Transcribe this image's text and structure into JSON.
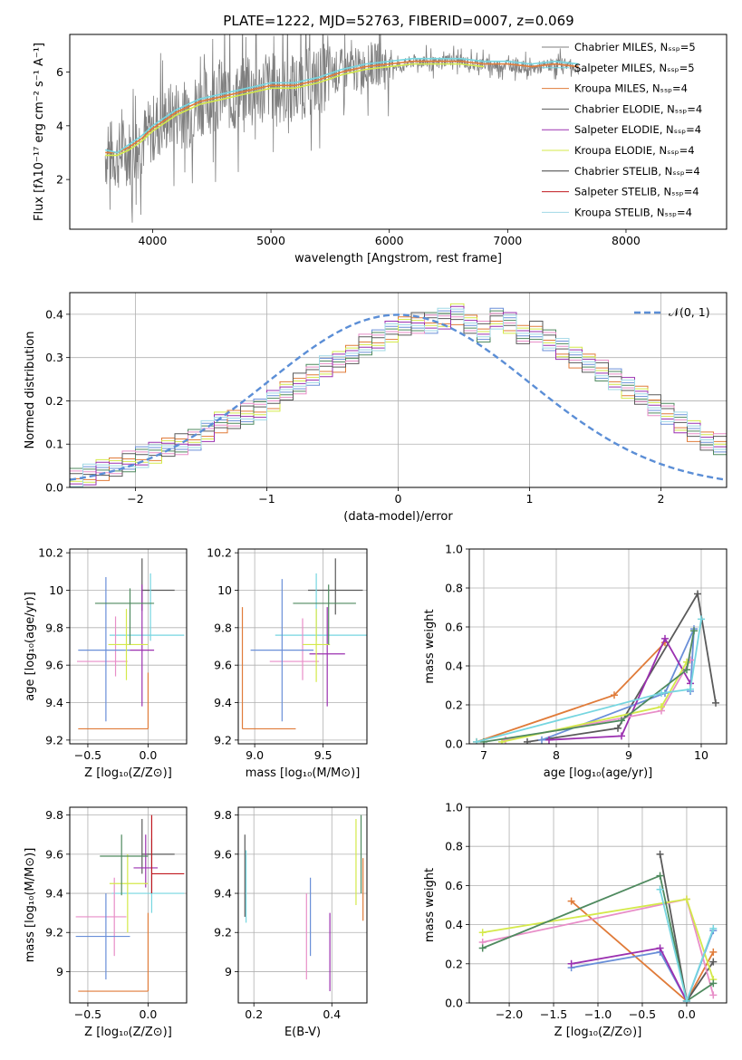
{
  "figure_title": "PLATE=1222, MJD=52763, FIBERID=0007, z=0.069",
  "colors": [
    "#7f7f7f",
    "#76d6e0",
    "#e07b39",
    "#5a5a5a",
    "#9b30b0",
    "#d4e94a",
    "#3f3f3f",
    "#c0181f",
    "#a0d8e6",
    "#6a8fd8",
    "#e88ec8",
    "#4f8a5f"
  ],
  "chart_data": [
    {
      "id": "spectrum",
      "type": "line",
      "title": "PLATE=1222, MJD=52763, FIBERID=0007, z=0.069",
      "xlabel": "wavelength [Angstrom, rest frame]",
      "ylabel": "Flux [fλ10⁻¹⁷ erg cm⁻² s⁻¹ A⁻¹]",
      "xlim": [
        3300,
        8850
      ],
      "ylim": [
        0.15,
        7.4
      ],
      "xticks": [
        4000,
        5000,
        6000,
        7000,
        8000
      ],
      "yticks": [
        2,
        4,
        6
      ],
      "grid": false,
      "legend_position": "right",
      "legend": [
        "Chabrier MILES, N_SSP=5",
        "Salpeter MILES, N_SSP=5",
        "Kroupa MILES, N_SSP=4",
        "Chabrier ELODIE, N_SSP=4",
        "Salpeter ELODIE, N_SSP=4",
        "Kroupa ELODIE, N_SSP=4",
        "Chabrier STELIB, N_SSP=4",
        "Salpeter STELIB, N_SSP=4",
        "Kroupa STELIB, N_SSP=4"
      ],
      "series": [
        {
          "name": "data",
          "x": [
            3600,
            3650,
            3700,
            3750,
            3800,
            3850,
            3900,
            3950,
            4000,
            4100,
            4200,
            4300,
            4400,
            4500,
            4600,
            4700,
            4800,
            4900,
            5000,
            5100,
            5200,
            5300,
            5400,
            5500,
            5600,
            5700,
            5800,
            5900,
            6000,
            6100,
            6200,
            6300,
            6400,
            6500,
            6600,
            6700,
            6800,
            6900,
            7000,
            7100,
            7200,
            7300,
            7400,
            7500,
            7600
          ],
          "y": [
            2.9,
            3.0,
            2.8,
            3.1,
            3.0,
            3.2,
            3.4,
            3.6,
            3.9,
            4.2,
            4.5,
            4.4,
            4.9,
            5.0,
            5.2,
            5.0,
            5.4,
            5.3,
            5.5,
            5.3,
            5.4,
            5.6,
            5.7,
            5.9,
            6.1,
            6.0,
            6.2,
            6.3,
            6.3,
            6.2,
            6.4,
            6.4,
            6.3,
            6.5,
            6.4,
            6.3,
            6.3,
            6.2,
            6.3,
            6.2,
            6.1,
            6.2,
            6.3,
            6.3,
            6.1
          ]
        },
        {
          "name": "Salpeter MILES, N_SSP=5",
          "x": [
            3600,
            3700,
            3800,
            3900,
            4000,
            4200,
            4400,
            4600,
            4800,
            5000,
            5200,
            5400,
            5600,
            5800,
            6000,
            6200,
            6400,
            6600,
            6800,
            7000,
            7200,
            7400,
            7600
          ],
          "y": [
            3.0,
            3.0,
            3.2,
            3.5,
            3.9,
            4.5,
            4.9,
            5.1,
            5.3,
            5.5,
            5.5,
            5.7,
            6.0,
            6.2,
            6.3,
            6.4,
            6.4,
            6.4,
            6.3,
            6.3,
            6.2,
            6.3,
            6.2
          ]
        },
        {
          "name": "Kroupa MILES, N_SSP=4",
          "x": [
            3600,
            3700,
            3800,
            3900,
            4000,
            4200,
            4400,
            4600,
            4800,
            5000,
            5200,
            5400,
            5600,
            5800,
            6000,
            6200,
            6400,
            6600,
            6800,
            7000,
            7200,
            7400,
            7600
          ],
          "y": [
            3.1,
            3.0,
            3.3,
            3.6,
            4.0,
            4.6,
            5.0,
            5.2,
            5.4,
            5.6,
            5.6,
            5.8,
            6.1,
            6.3,
            6.4,
            6.5,
            6.5,
            6.5,
            6.4,
            6.4,
            6.3,
            6.4,
            6.3
          ]
        },
        {
          "name": "Kroupa ELODIE, N_SSP=4",
          "x": [
            3600,
            3700,
            3800,
            3900,
            4000,
            4200,
            4400,
            4600,
            4800,
            5000,
            5200,
            5400,
            5600,
            5800,
            6000,
            6200,
            6400,
            6600,
            6800
          ],
          "y": [
            2.9,
            2.9,
            3.1,
            3.4,
            3.8,
            4.4,
            4.8,
            5.0,
            5.2,
            5.4,
            5.4,
            5.6,
            5.9,
            6.1,
            6.2,
            6.3,
            6.3,
            6.3,
            6.2
          ]
        }
      ]
    },
    {
      "id": "residuals",
      "type": "line",
      "xlabel": "(data-model)/error",
      "ylabel": "Normed distribution",
      "xlim": [
        -2.5,
        2.5
      ],
      "ylim": [
        0,
        0.45
      ],
      "xticks": [
        -2,
        -1,
        0,
        1,
        2
      ],
      "yticks": [
        0.0,
        0.1,
        0.2,
        0.3,
        0.4
      ],
      "grid": true,
      "legend_position": "top-right",
      "legend": [
        "𝒩(0, 1)"
      ],
      "bin_width": 0.1,
      "bin_start": -2.5,
      "series": [
        {
          "name": "histogram",
          "values": [
            0.02,
            0.03,
            0.04,
            0.05,
            0.06,
            0.07,
            0.08,
            0.09,
            0.1,
            0.11,
            0.13,
            0.15,
            0.16,
            0.17,
            0.18,
            0.2,
            0.22,
            0.24,
            0.26,
            0.28,
            0.29,
            0.31,
            0.33,
            0.34,
            0.36,
            0.37,
            0.38,
            0.38,
            0.39,
            0.4,
            0.38,
            0.36,
            0.39,
            0.38,
            0.35,
            0.36,
            0.34,
            0.32,
            0.3,
            0.29,
            0.27,
            0.25,
            0.23,
            0.21,
            0.19,
            0.17,
            0.15,
            0.13,
            0.11,
            0.1
          ]
        }
      ]
    },
    {
      "id": "age-vs-Z",
      "type": "scatter",
      "xlabel": "Z [log₁₀(Z/Z⊙)]",
      "ylabel": "age  [log₁₀(age/yr)]",
      "xlim": [
        -0.65,
        0.32
      ],
      "ylim": [
        9.18,
        10.22
      ],
      "xticks": [
        -0.5,
        0.0
      ],
      "xtick_labels": [
        "−0.5",
        "0.0"
      ],
      "yticks": [
        9.2,
        9.4,
        9.6,
        9.8,
        10.0,
        10.2
      ],
      "grid": true,
      "points": [
        {
          "x": -0.05,
          "y": 10.0,
          "xerr": [
            0.0,
            0.27
          ],
          "yerr": [
            0.11,
            0.17
          ]
        },
        {
          "x": 0.02,
          "y": 9.76,
          "xerr": [
            0.34,
            0.28
          ],
          "yerr": [
            0.03,
            0.33
          ]
        },
        {
          "x": -0.27,
          "y": 9.62,
          "xerr": [
            0.32,
            0.1
          ],
          "yerr": [
            0.08,
            0.24
          ]
        },
        {
          "x": -0.35,
          "y": 9.68,
          "xerr": [
            0.23,
            0.2
          ],
          "yerr": [
            0.38,
            0.39
          ]
        },
        {
          "x": -0.05,
          "y": 9.68,
          "xerr": [
            0.1,
            0.1
          ],
          "yerr": [
            0.3,
            0.35
          ]
        },
        {
          "x": -0.18,
          "y": 9.71,
          "xerr": [
            0.15,
            0.18
          ],
          "yerr": [
            0.19,
            0.19
          ]
        },
        {
          "x": -0.15,
          "y": 9.93,
          "xerr": [
            0.29,
            0.2
          ],
          "yerr": [
            0.22,
            0.08
          ]
        },
        {
          "x": 0.0,
          "y": 9.26,
          "xerr": [
            0.58,
            0.0
          ],
          "yerr": [
            0.0,
            0.3
          ]
        }
      ]
    },
    {
      "id": "age-vs-mass",
      "type": "scatter",
      "xlabel": "mass [log₁₀(M/M⊙)]",
      "ylabel": "",
      "xlim": [
        8.88,
        9.82
      ],
      "ylim": [
        9.18,
        10.22
      ],
      "xticks": [
        9.0,
        9.5
      ],
      "xtick_labels": [
        "9.0",
        "9.5"
      ],
      "yticks": [
        9.2,
        9.4,
        9.6,
        9.8,
        10.0,
        10.2
      ],
      "grid": true,
      "points": [
        {
          "x": 9.59,
          "y": 10.0,
          "xerr": [
            0.2,
            0.2
          ],
          "yerr": [
            0.13,
            0.17
          ]
        },
        {
          "x": 9.45,
          "y": 9.76,
          "xerr": [
            0.3,
            0.4
          ],
          "yerr": [
            0.03,
            0.33
          ]
        },
        {
          "x": 9.35,
          "y": 9.62,
          "xerr": [
            0.24,
            0.12
          ],
          "yerr": [
            0.1,
            0.23
          ]
        },
        {
          "x": 9.2,
          "y": 9.68,
          "xerr": [
            0.23,
            0.23
          ],
          "yerr": [
            0.38,
            0.38
          ]
        },
        {
          "x": 9.53,
          "y": 9.66,
          "xerr": [
            0.13,
            0.13
          ],
          "yerr": [
            0.28,
            0.25
          ]
        },
        {
          "x": 9.45,
          "y": 9.71,
          "xerr": [
            0.1,
            0.1
          ],
          "yerr": [
            0.2,
            0.19
          ]
        },
        {
          "x": 9.54,
          "y": 9.93,
          "xerr": [
            0.26,
            0.2
          ],
          "yerr": [
            0.22,
            0.1
          ]
        },
        {
          "x": 8.91,
          "y": 9.26,
          "xerr": [
            0.0,
            0.39
          ],
          "yerr": [
            0.0,
            0.65
          ]
        }
      ]
    },
    {
      "id": "weight-vs-age",
      "type": "line",
      "xlabel": "age  [log₁₀(age/yr)]",
      "ylabel": "mass weight",
      "xlim": [
        6.8,
        10.35
      ],
      "ylim": [
        0,
        1.0
      ],
      "xticks": [
        7,
        8,
        9,
        10
      ],
      "yticks": [
        0.0,
        0.2,
        0.4,
        0.6,
        0.8,
        1.0
      ],
      "grid": true,
      "series": [
        {
          "x": [
            6.9,
            8.8,
            9.5
          ],
          "y": [
            0.01,
            0.25,
            0.52
          ]
        },
        {
          "x": [
            7.6,
            8.85,
            9.95,
            10.2
          ],
          "y": [
            0.01,
            0.08,
            0.77,
            0.21
          ]
        },
        {
          "x": [
            7.8,
            9.5,
            9.9,
            9.85
          ],
          "y": [
            0.02,
            0.26,
            0.59,
            0.27
          ]
        },
        {
          "x": [
            7.9,
            8.9,
            9.5,
            9.85
          ],
          "y": [
            0.02,
            0.04,
            0.54,
            0.31
          ]
        },
        {
          "x": [
            7.3,
            9.45,
            9.85
          ],
          "y": [
            0.02,
            0.17,
            0.43
          ]
        },
        {
          "x": [
            7.25,
            9.45,
            9.8
          ],
          "y": [
            0.01,
            0.19,
            0.42
          ]
        },
        {
          "x": [
            7.0,
            8.9,
            9.8,
            9.9
          ],
          "y": [
            0.01,
            0.12,
            0.38,
            0.58
          ]
        },
        {
          "x": [
            6.9,
            9.45,
            9.85,
            10.0
          ],
          "y": [
            0.01,
            0.26,
            0.28,
            0.64
          ]
        }
      ]
    },
    {
      "id": "mass-vs-Z",
      "type": "scatter",
      "xlabel": "Z [log₁₀(Z/Z⊙)]",
      "ylabel": "mass [log₁₀(M/M⊙)]",
      "xlim": [
        -0.65,
        0.32
      ],
      "ylim": [
        8.84,
        9.84
      ],
      "xticks": [
        -0.5,
        0.0
      ],
      "xtick_labels": [
        "−0.5",
        "0.0"
      ],
      "yticks": [
        9.0,
        9.2,
        9.4,
        9.6,
        9.8
      ],
      "grid": true,
      "points": [
        {
          "x": -0.05,
          "y": 9.6,
          "xerr": [
            0.0,
            0.27
          ],
          "yerr": [
            0.1,
            0.18
          ]
        },
        {
          "x": 0.03,
          "y": 9.4,
          "xerr": [
            0.33,
            0.27
          ],
          "yerr": [
            0.1,
            0.28
          ]
        },
        {
          "x": -0.28,
          "y": 9.28,
          "xerr": [
            0.32,
            0.1
          ],
          "yerr": [
            0.2,
            0.2
          ]
        },
        {
          "x": -0.35,
          "y": 9.18,
          "xerr": [
            0.25,
            0.2
          ],
          "yerr": [
            0.22,
            0.22
          ]
        },
        {
          "x": -0.02,
          "y": 9.53,
          "xerr": [
            0.1,
            0.1
          ],
          "yerr": [
            0.1,
            0.17
          ]
        },
        {
          "x": -0.17,
          "y": 9.45,
          "xerr": [
            0.15,
            0.17
          ],
          "yerr": [
            0.25,
            0.15
          ]
        },
        {
          "x": -0.22,
          "y": 9.59,
          "xerr": [
            0.18,
            0.22
          ],
          "yerr": [
            0.2,
            0.11
          ]
        },
        {
          "x": 0.0,
          "y": 8.9,
          "xerr": [
            0.58,
            0.0
          ],
          "yerr": [
            0.0,
            0.4
          ]
        },
        {
          "x": 0.03,
          "y": 9.5,
          "xerr": [
            0.0,
            0.27
          ],
          "yerr": [
            0.1,
            0.3
          ]
        }
      ]
    },
    {
      "id": "mass-vs-EBV",
      "type": "scatter",
      "xlabel": "E(B-V)",
      "ylabel": "",
      "xlim": [
        0.16,
        0.49
      ],
      "ylim": [
        8.84,
        9.84
      ],
      "xticks": [
        0.2,
        0.4
      ],
      "xtick_labels": [
        "0.2",
        "0.4"
      ],
      "yticks": [
        9.0,
        9.2,
        9.4,
        9.6,
        9.8
      ],
      "grid": true,
      "points": [
        {
          "x": 0.177,
          "y": 9.5,
          "xerr": [
            0,
            0
          ],
          "yerr": [
            0.22,
            0.2
          ]
        },
        {
          "x": 0.18,
          "y": 9.4,
          "xerr": [
            0,
            0
          ],
          "yerr": [
            0.15,
            0.22
          ]
        },
        {
          "x": 0.335,
          "y": 9.18,
          "xerr": [
            0,
            0
          ],
          "yerr": [
            0.22,
            0.22
          ]
        },
        {
          "x": 0.345,
          "y": 9.28,
          "xerr": [
            0,
            0
          ],
          "yerr": [
            0.2,
            0.2
          ]
        },
        {
          "x": 0.395,
          "y": 9.1,
          "xerr": [
            0,
            0
          ],
          "yerr": [
            0.2,
            0.2
          ]
        },
        {
          "x": 0.462,
          "y": 9.56,
          "xerr": [
            0,
            0
          ],
          "yerr": [
            0.22,
            0.22
          ]
        },
        {
          "x": 0.475,
          "y": 9.5,
          "xerr": [
            0,
            0
          ],
          "yerr": [
            0.1,
            0.3
          ]
        },
        {
          "x": 0.48,
          "y": 9.4,
          "xerr": [
            0,
            0
          ],
          "yerr": [
            0.14,
            0.18
          ]
        }
      ]
    },
    {
      "id": "weight-vs-Z",
      "type": "line",
      "xlabel": "Z [log₁₀(Z/Z⊙)]",
      "ylabel": "mass weight",
      "xlim": [
        -2.45,
        0.45
      ],
      "ylim": [
        0,
        1.0
      ],
      "xticks": [
        -2.0,
        -1.5,
        -1.0,
        -0.5,
        0.0
      ],
      "xtick_labels": [
        "−2.0",
        "−1.5",
        "−1.0",
        "−0.5",
        "0.0"
      ],
      "yticks": [
        0.0,
        0.2,
        0.4,
        0.6,
        0.8,
        1.0
      ],
      "grid": true,
      "series": [
        {
          "x": [
            -1.3,
            0.0,
            0.3
          ],
          "y": [
            0.52,
            0.01,
            0.26
          ]
        },
        {
          "x": [
            -0.3,
            0.0,
            0.3
          ],
          "y": [
            0.76,
            0.01,
            0.21
          ]
        },
        {
          "x": [
            -1.3,
            -0.3,
            0.0,
            0.3
          ],
          "y": [
            0.18,
            0.26,
            0.01,
            0.37
          ]
        },
        {
          "x": [
            -1.3,
            -0.3,
            0.0
          ],
          "y": [
            0.2,
            0.28,
            0.01
          ]
        },
        {
          "x": [
            -2.3,
            0.0,
            0.3
          ],
          "y": [
            0.31,
            0.53,
            0.04
          ]
        },
        {
          "x": [
            -2.3,
            0.0,
            0.3
          ],
          "y": [
            0.36,
            0.53,
            0.12
          ]
        },
        {
          "x": [
            -2.3,
            -0.3,
            0.0,
            0.3
          ],
          "y": [
            0.28,
            0.65,
            0.01,
            0.1
          ]
        },
        {
          "x": [
            -0.3,
            0.0,
            0.3
          ],
          "y": [
            0.58,
            0.01,
            0.38
          ]
        }
      ]
    }
  ]
}
